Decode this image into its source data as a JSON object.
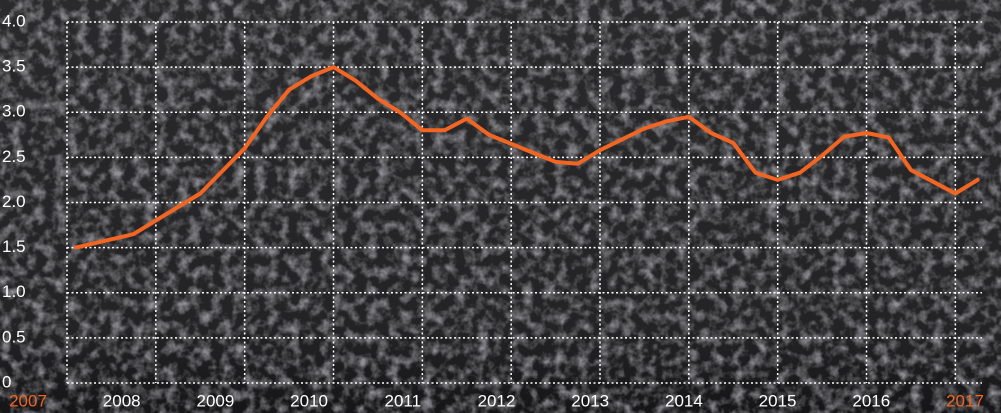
{
  "chart_data": {
    "type": "line",
    "x": [
      2007.1,
      2007.75,
      2008.25,
      2008.5,
      2008.75,
      2009.0,
      2009.25,
      2009.5,
      2009.75,
      2010.0,
      2010.25,
      2010.5,
      2010.75,
      2011.0,
      2011.25,
      2011.5,
      2011.75,
      2012.0,
      2012.25,
      2012.5,
      2012.75,
      2013.0,
      2013.25,
      2013.5,
      2013.75,
      2014.0,
      2014.25,
      2014.5,
      2014.75,
      2015.0,
      2015.25,
      2015.5,
      2015.75,
      2016.0,
      2016.25,
      2016.5,
      2016.75,
      2017.0,
      2017.25
    ],
    "values": [
      1.5,
      1.65,
      1.95,
      2.1,
      2.35,
      2.6,
      2.95,
      3.25,
      3.4,
      3.5,
      3.35,
      3.15,
      3.0,
      2.8,
      2.8,
      2.93,
      2.75,
      2.65,
      2.55,
      2.45,
      2.43,
      2.58,
      2.7,
      2.82,
      2.9,
      2.95,
      2.77,
      2.66,
      2.33,
      2.25,
      2.33,
      2.52,
      2.73,
      2.77,
      2.72,
      2.36,
      2.23,
      2.1,
      2.25
    ],
    "color": "#f26522",
    "xlim": [
      2007,
      2017.3
    ],
    "xticks": [
      2007,
      2008,
      2009,
      2010,
      2011,
      2012,
      2013,
      2014,
      2015,
      2016,
      2017
    ],
    "ylim": [
      0,
      4
    ],
    "yticks": [
      0,
      0.5,
      {
        "value": 1,
        "label": "1.0"
      },
      1.5,
      {
        "value": 2,
        "label": "2.0"
      },
      2.5,
      {
        "value": 3,
        "label": "3.0"
      },
      3.5,
      {
        "value": 4,
        "label": "4.0"
      }
    ],
    "grid": true,
    "highlight_tick_color": "#f26522"
  }
}
